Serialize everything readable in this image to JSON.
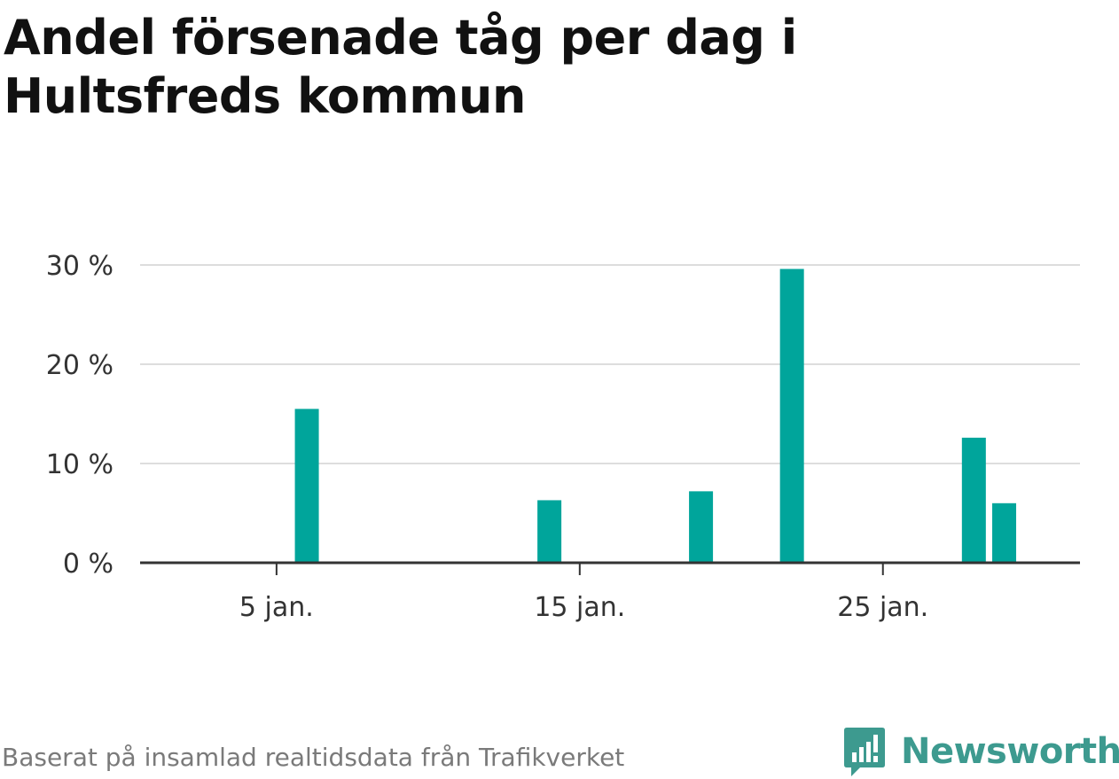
{
  "title": "Andel försenade tåg per dag i Hultsfreds kommun",
  "footer": {
    "source": "Baserat på insamlad realtidsdata från Trafikverket",
    "brand": "Newsworthy",
    "brand_icon": "newsworthy-logo-icon"
  },
  "colors": {
    "bar": "#00a59b",
    "grid": "#dddddd",
    "axis": "#333333",
    "brand": "#3d9a8f"
  },
  "chart_data": {
    "type": "bar",
    "title": "Andel försenade tåg per dag i Hultsfreds kommun",
    "xlabel": "",
    "ylabel": "",
    "x_unit": "day of January",
    "xlim": [
      0.5,
      31.5
    ],
    "ylim": [
      0,
      30
    ],
    "yticks": [
      0,
      10,
      20,
      30
    ],
    "ytick_labels": [
      "0 %",
      "10 %",
      "20 %",
      "30 %"
    ],
    "xticks": [
      5,
      15,
      25
    ],
    "xtick_labels": [
      "5 jan.",
      "15 jan.",
      "25 jan."
    ],
    "grid": true,
    "x": [
      6,
      14,
      19,
      22,
      28,
      29
    ],
    "values": [
      15.5,
      6.3,
      7.2,
      29.6,
      12.6,
      6.0
    ]
  }
}
